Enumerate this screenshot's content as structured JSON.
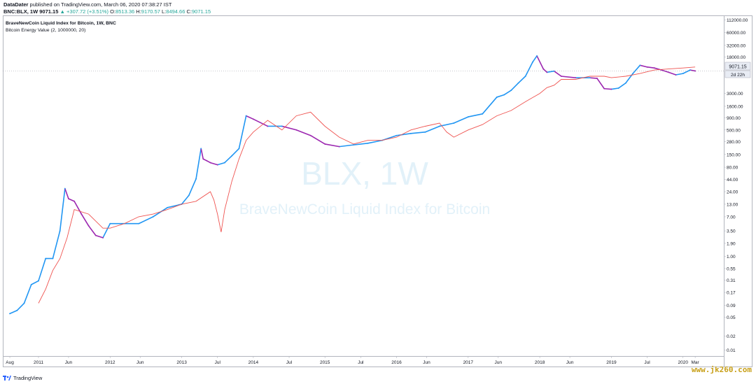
{
  "header": {
    "author": "DataDater",
    "published": "published on TradingView.com, March 06, 2020 07:38:27 IST",
    "symbol": "BNC:BLX, 1W",
    "last": "9071.15",
    "change": "+307.72 (+3.51%)",
    "o_label": "O:",
    "o_value": "8513.36",
    "h_label": "H:",
    "h_value": "9170.57",
    "l_label": "L:",
    "l_value": "8494.66",
    "c_label": "C:",
    "c_value": "9071.15"
  },
  "legend": {
    "series1": "BraveNewCoin Liquid Index for Bitcoin, 1W, BNC",
    "series2": "Bitcoin Energy Value (2, 1000000, 20)"
  },
  "watermark": {
    "symbol": "BLX, 1W",
    "name": "BraveNewCoin Liquid Index for Bitcoin"
  },
  "price_tag": {
    "value": "9071.15",
    "countdown": "2d 22h"
  },
  "footer": {
    "brand": "TradingView"
  },
  "site_watermark": "www.jk260.com",
  "colors": {
    "up": "#2196f3",
    "down": "#9c27b0",
    "indicator": "#ef5350",
    "axis": "#b2b5be",
    "accent_green": "#26a69a"
  },
  "chart_data": {
    "type": "line",
    "y_scale": "log",
    "y_ticks": [
      "112000.00",
      "60000.00",
      "32000.00",
      "18000.00",
      "3000.00",
      "1600.00",
      "900.00",
      "500.00",
      "280.00",
      "150.00",
      "80.00",
      "44.00",
      "24.00",
      "13.00",
      "7.00",
      "3.50",
      "1.90",
      "1.00",
      "0.55",
      "0.31",
      "0.17",
      "0.09",
      "0.05",
      "0.02",
      "0.01"
    ],
    "y_tick_values": [
      112000,
      60000,
      32000,
      18000,
      3000,
      1600,
      900,
      500,
      280,
      150,
      80,
      44,
      24,
      13,
      7,
      3.5,
      1.9,
      1,
      0.55,
      0.31,
      0.17,
      0.09,
      0.05,
      0.02,
      0.01
    ],
    "ylim": [
      0.008,
      130000
    ],
    "x_ticks": [
      "Aug",
      "2011",
      "Jun",
      "2012",
      "Jun",
      "2013",
      "Jul",
      "2014",
      "Jul",
      "2015",
      "Jul",
      "2016",
      "Jun",
      "2017",
      "Jun",
      "2018",
      "Jun",
      "2019",
      "Jul",
      "2020",
      "Mar"
    ],
    "x_tick_times": [
      2010.6,
      2011.0,
      2011.42,
      2012.0,
      2012.42,
      2013.0,
      2013.5,
      2014.0,
      2014.5,
      2015.0,
      2015.5,
      2016.0,
      2016.42,
      2017.0,
      2017.42,
      2018.0,
      2018.42,
      2019.0,
      2019.5,
      2020.0,
      2020.17
    ],
    "xlim": [
      2010.58,
      2020.55
    ],
    "series": [
      {
        "name": "BraveNewCoin Liquid Index for Bitcoin, 1W, BNC",
        "x": [
          2010.6,
          2010.7,
          2010.8,
          2010.9,
          2011.0,
          2011.1,
          2011.2,
          2011.3,
          2011.37,
          2011.42,
          2011.5,
          2011.6,
          2011.7,
          2011.8,
          2011.9,
          2012.0,
          2012.2,
          2012.4,
          2012.6,
          2012.8,
          2013.0,
          2013.1,
          2013.2,
          2013.27,
          2013.3,
          2013.35,
          2013.4,
          2013.5,
          2013.6,
          2013.7,
          2013.8,
          2013.9,
          2014.0,
          2014.2,
          2014.4,
          2014.6,
          2014.8,
          2015.0,
          2015.2,
          2015.4,
          2015.6,
          2015.8,
          2016.0,
          2016.2,
          2016.4,
          2016.6,
          2016.8,
          2017.0,
          2017.2,
          2017.4,
          2017.5,
          2017.6,
          2017.7,
          2017.8,
          2017.9,
          2017.96,
          2018.05,
          2018.1,
          2018.2,
          2018.3,
          2018.5,
          2018.7,
          2018.8,
          2018.9,
          2019.0,
          2019.1,
          2019.2,
          2019.3,
          2019.4,
          2019.5,
          2019.6,
          2019.7,
          2019.8,
          2019.9,
          2020.0,
          2020.1,
          2020.17
        ],
        "values": [
          0.06,
          0.07,
          0.1,
          0.25,
          0.3,
          0.9,
          0.9,
          3.5,
          28,
          17,
          15,
          8,
          4.5,
          2.8,
          2.5,
          5,
          5,
          5,
          7,
          11,
          13,
          20,
          45,
          200,
          120,
          110,
          100,
          90,
          100,
          140,
          200,
          1000,
          850,
          600,
          600,
          500,
          380,
          250,
          220,
          240,
          260,
          300,
          380,
          420,
          450,
          600,
          700,
          950,
          1100,
          2500,
          2800,
          3500,
          5000,
          7000,
          14000,
          19000,
          10000,
          8500,
          9000,
          7000,
          6500,
          6500,
          6300,
          3800,
          3700,
          3900,
          5000,
          8000,
          12000,
          11000,
          10500,
          9500,
          8500,
          7500,
          8000,
          9500,
          9071.15
        ]
      },
      {
        "name": "Bitcoin Energy Value (2, 1000000, 20)",
        "x": [
          2011.0,
          2011.1,
          2011.2,
          2011.3,
          2011.4,
          2011.5,
          2011.7,
          2011.9,
          2012.0,
          2012.2,
          2012.4,
          2012.6,
          2012.8,
          2013.0,
          2013.2,
          2013.4,
          2013.45,
          2013.5,
          2013.55,
          2013.6,
          2013.7,
          2013.8,
          2013.9,
          2014.0,
          2014.2,
          2014.4,
          2014.6,
          2014.8,
          2015.0,
          2015.2,
          2015.4,
          2015.6,
          2015.8,
          2016.0,
          2016.2,
          2016.4,
          2016.6,
          2016.7,
          2016.8,
          2017.0,
          2017.2,
          2017.4,
          2017.6,
          2017.8,
          2018.0,
          2018.1,
          2018.2,
          2018.3,
          2018.5,
          2018.7,
          2018.9,
          2019.0,
          2019.2,
          2019.4,
          2019.6,
          2019.8,
          2020.0,
          2020.17
        ],
        "values": [
          0.1,
          0.2,
          0.5,
          0.9,
          2.5,
          10,
          8,
          4,
          4,
          5,
          7,
          8,
          10,
          13,
          15,
          24,
          16,
          8,
          3.3,
          10,
          40,
          120,
          300,
          450,
          800,
          500,
          1000,
          1200,
          600,
          350,
          250,
          300,
          300,
          350,
          500,
          600,
          700,
          450,
          350,
          500,
          650,
          1000,
          1300,
          2000,
          3000,
          4000,
          4500,
          6000,
          6000,
          7000,
          7000,
          6500,
          7000,
          8000,
          9500,
          10000,
          10500,
          11000
        ]
      }
    ]
  }
}
